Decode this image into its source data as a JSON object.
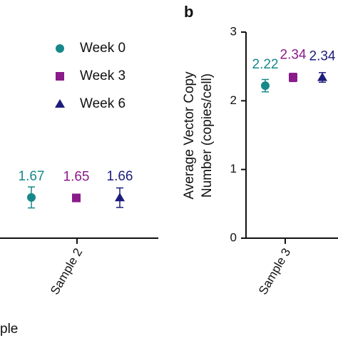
{
  "chart_data": [
    {
      "type": "scatter",
      "categories": [
        "Sample 2"
      ],
      "xlabel": "ple",
      "ylim": [
        0,
        8.45
      ],
      "legend": "upper-right",
      "series": [
        {
          "name": "Week 0",
          "color": "#17888a",
          "marker": "circle",
          "values": [
            1.67
          ],
          "errors": [
            0.43
          ]
        },
        {
          "name": "Week 3",
          "color": "#8a1b8a",
          "marker": "square",
          "values": [
            1.65
          ],
          "errors": [
            0.15
          ]
        },
        {
          "name": "Week 6",
          "color": "#1c1c7c",
          "marker": "triangle",
          "values": [
            1.66
          ],
          "errors": [
            0.4
          ]
        }
      ]
    },
    {
      "type": "scatter",
      "panel": "b",
      "categories": [
        "Sample 3"
      ],
      "ylabel": [
        "Average Vector Copy",
        "Number (copies/cell)"
      ],
      "ylim": [
        0,
        3
      ],
      "yticks": [
        0,
        1,
        2,
        3
      ],
      "series": [
        {
          "color": "#17888a",
          "marker": "circle",
          "values": [
            2.22
          ],
          "errors": [
            0.09
          ]
        },
        {
          "color": "#8a1b8a",
          "marker": "square",
          "values": [
            2.34
          ],
          "errors": [
            0.06
          ]
        },
        {
          "color": "#1c1c7c",
          "marker": "triangle",
          "values": [
            2.34
          ],
          "errors": [
            0.07
          ]
        }
      ]
    }
  ]
}
